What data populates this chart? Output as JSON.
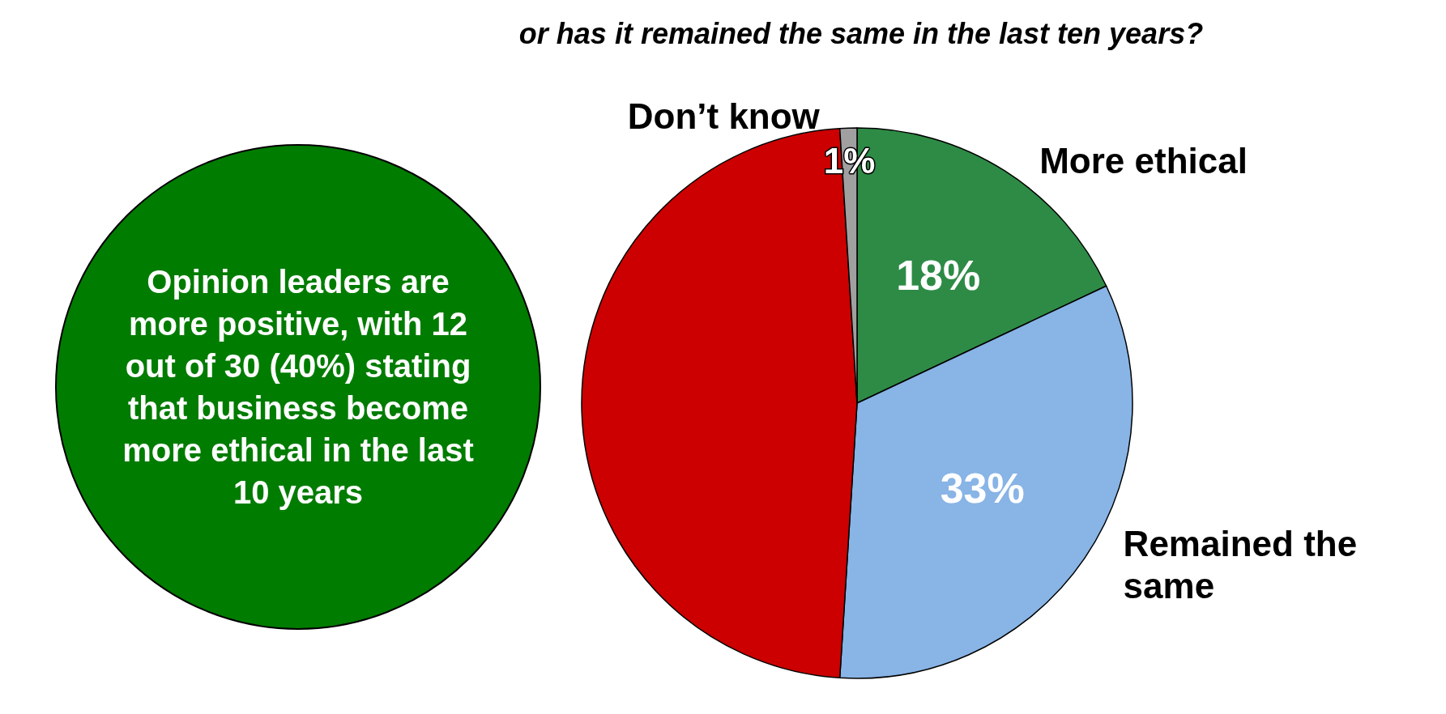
{
  "chart_data": {
    "type": "pie",
    "title": "or has it remained the same in the last ten years?",
    "categories": [
      "More ethical",
      "Remained the same",
      null,
      "Don’t know"
    ],
    "values": [
      18,
      33,
      48,
      1
    ],
    "colors": [
      "#2e8b46",
      "#88b4e6",
      "#cc0000",
      "#a0a0a0"
    ],
    "value_labels": [
      "18%",
      "33%",
      null,
      "1%"
    ],
    "annotations": [
      "Opinion leaders are more positive, with 12 out of 30 (40%) stating that business become more ethical in the last 10 years"
    ],
    "legend": false
  }
}
